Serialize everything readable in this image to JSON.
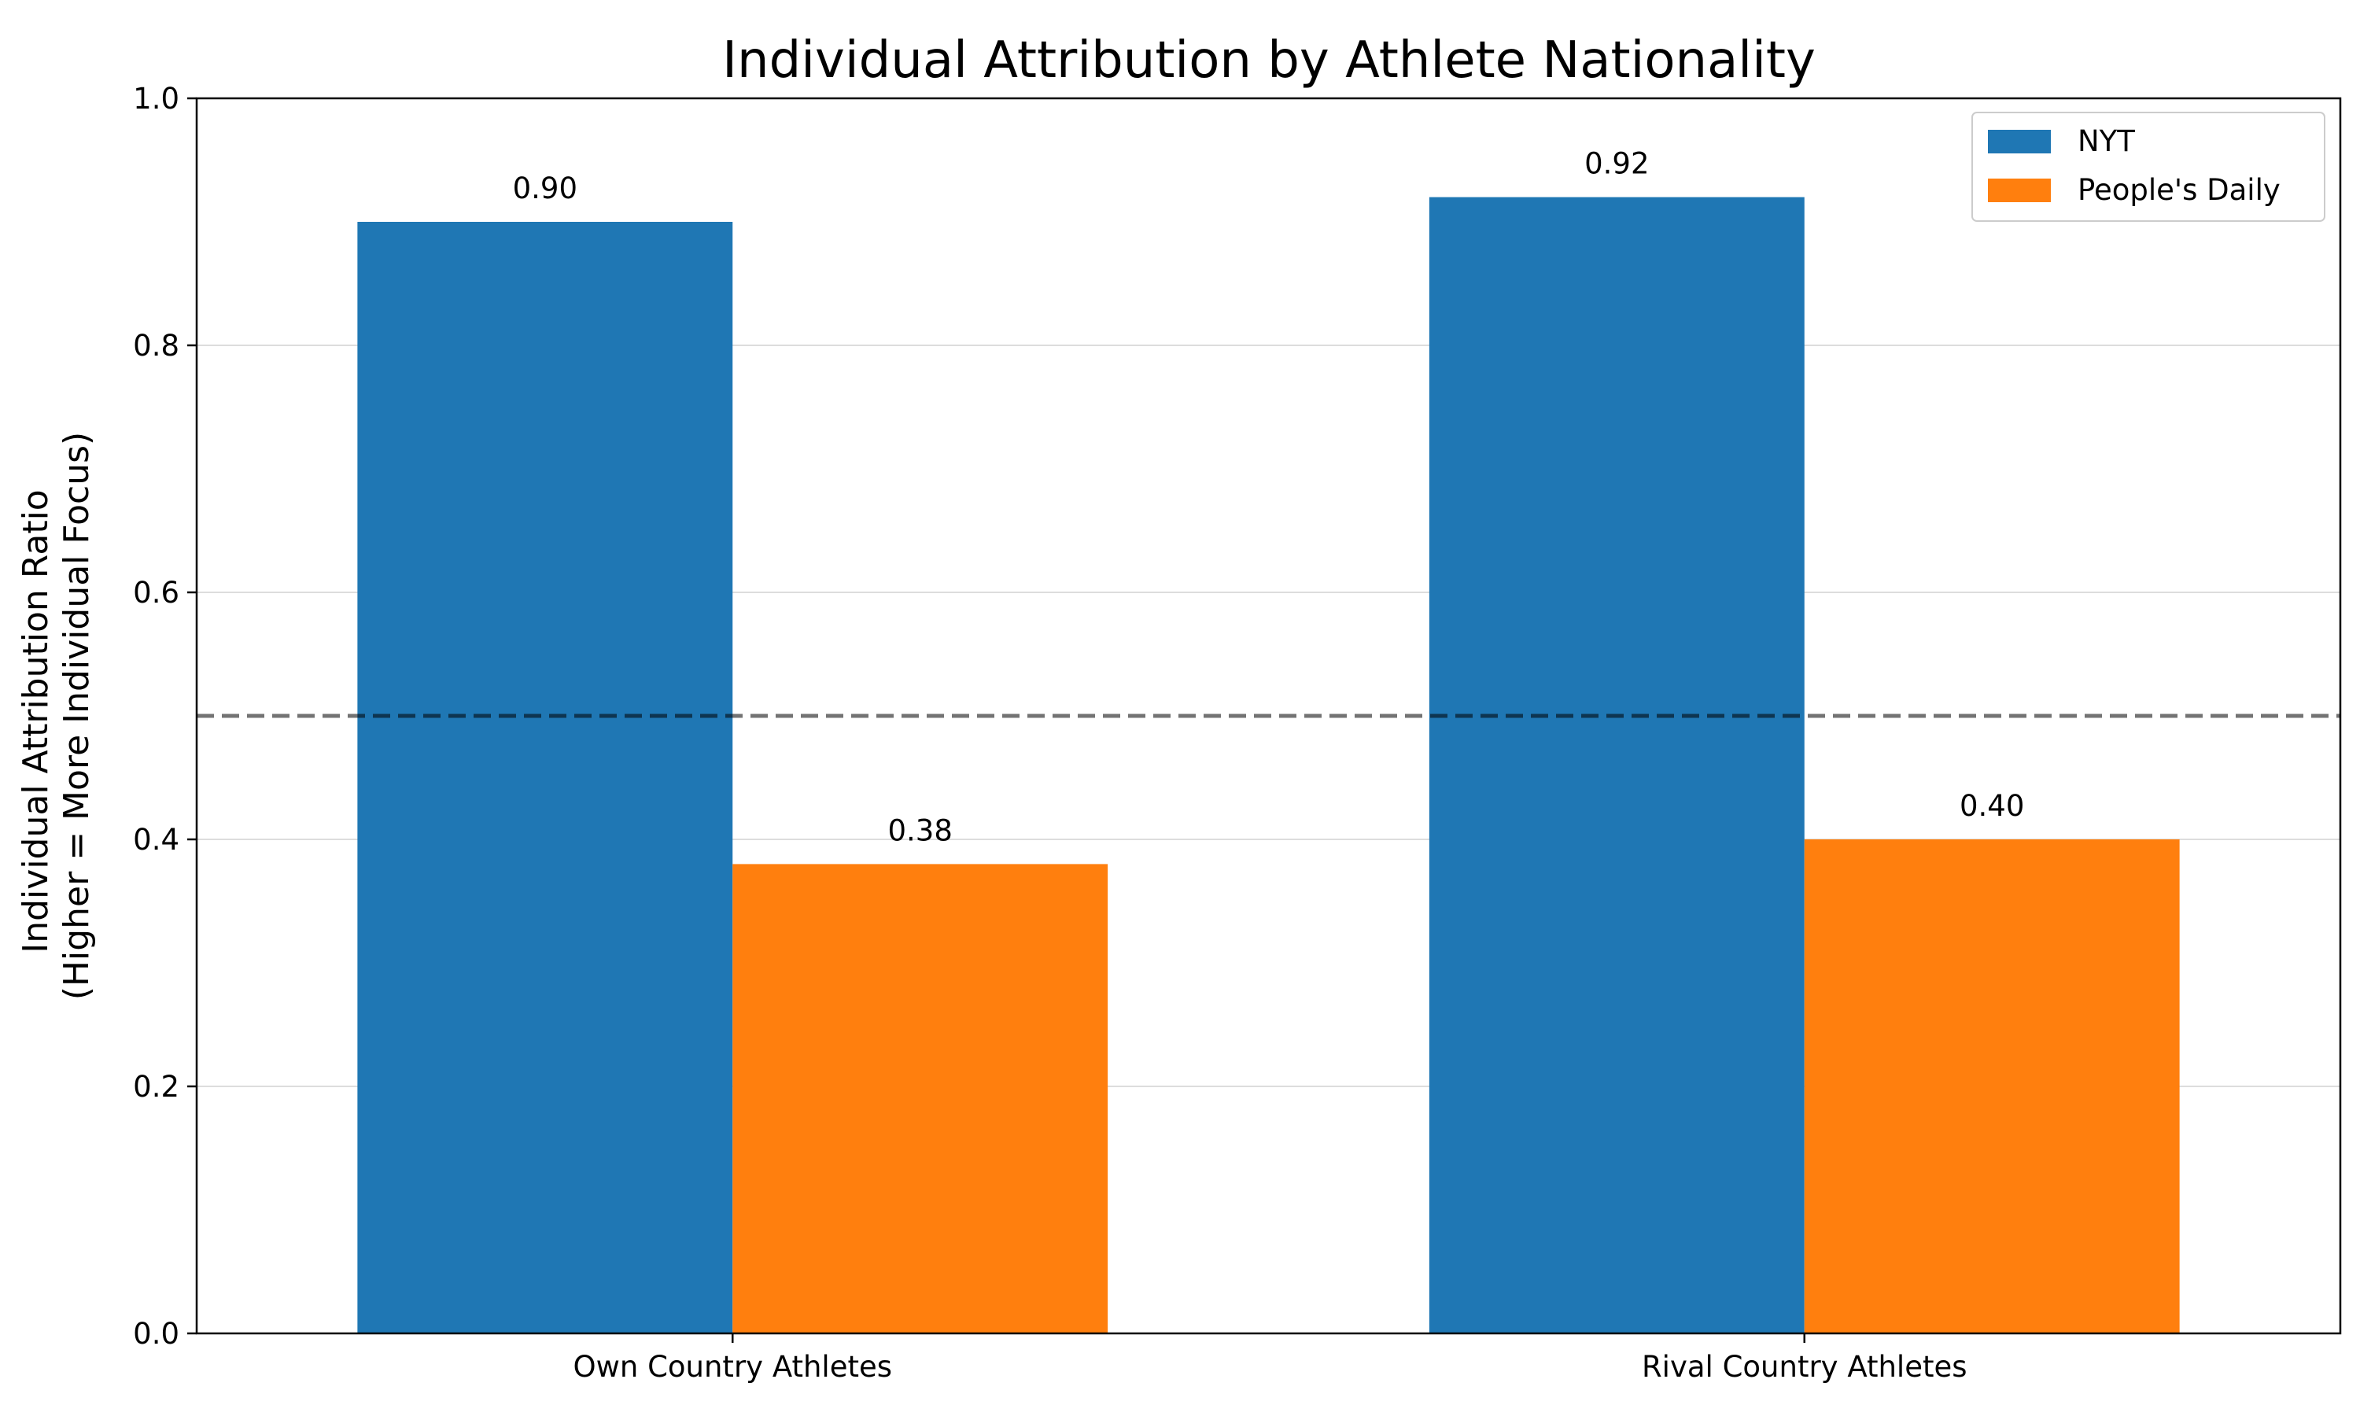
{
  "chart_data": {
    "type": "bar",
    "title": "Individual Attribution by Athlete Nationality",
    "xlabel": "",
    "ylabel_lines": [
      "Individual Attribution Ratio",
      "(Higher = More Individual Focus)"
    ],
    "categories": [
      "Own Country Athletes",
      "Rival Country Athletes"
    ],
    "series": [
      {
        "name": "NYT",
        "values": [
          0.9,
          0.92
        ],
        "labels": [
          "0.90",
          "0.92"
        ],
        "color": "#1f77b4"
      },
      {
        "name": "People's Daily",
        "values": [
          0.38,
          0.4
        ],
        "labels": [
          "0.38",
          "0.40"
        ],
        "color": "#ff7f0e"
      }
    ],
    "ylim": [
      0,
      1.0
    ],
    "yticks": [
      "0.0",
      "0.2",
      "0.4",
      "0.6",
      "0.8",
      "1.0"
    ],
    "ytick_values": [
      0,
      0.2,
      0.4,
      0.6,
      0.8,
      1.0
    ],
    "reference_line": {
      "y": 0.5,
      "style": "dashed",
      "color": "#555555"
    },
    "grid": "horizontal",
    "legend_position": "top-right"
  }
}
